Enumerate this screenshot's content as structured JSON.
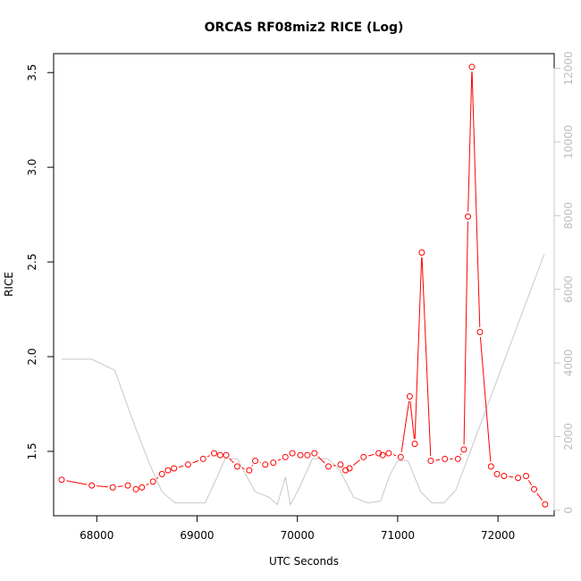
{
  "chart_data": {
    "type": "line",
    "title": "ORCAS RF08miz2 RICE (Log)",
    "xlabel": "UTC Seconds",
    "ylabel": "RICE",
    "xlim": [
      67570,
      72560
    ],
    "ylim": [
      1.16,
      3.6
    ],
    "y2lim": [
      -150,
      12400
    ],
    "grid": false,
    "legend": "none",
    "x_ticks": [
      68000,
      69000,
      70000,
      71000,
      72000
    ],
    "y_ticks": [
      1.5,
      2.0,
      2.5,
      3.0,
      3.5
    ],
    "y2_ticks": [
      0,
      2000,
      4000,
      6000,
      8000,
      10000,
      12000
    ],
    "x_tick_labels": [
      "68000",
      "69000",
      "70000",
      "71000",
      "72000"
    ],
    "y_tick_labels": [
      "1.5",
      "2.0",
      "2.5",
      "3.0",
      "3.5"
    ],
    "y2_tick_labels": [
      "0",
      "2000",
      "4000",
      "6000",
      "8000",
      "10000",
      "12000"
    ],
    "series": [
      {
        "axis": "left",
        "color": "#ff0000",
        "style": "line+circles",
        "x": [
          67650,
          67950,
          68160,
          68310,
          68390,
          68450,
          68560,
          68650,
          68710,
          68770,
          68910,
          69060,
          69170,
          69230,
          69290,
          69400,
          69520,
          69580,
          69680,
          69760,
          69880,
          69950,
          70030,
          70100,
          70170,
          70310,
          70430,
          70480,
          70520,
          70660,
          70810,
          70850,
          70910,
          71030,
          71120,
          71170,
          71240,
          71330,
          71470,
          71600,
          71660,
          71700,
          71740,
          71820,
          71930,
          71990,
          72060,
          72200,
          72280,
          72360,
          72470
        ],
        "y": [
          1.35,
          1.32,
          1.31,
          1.32,
          1.3,
          1.31,
          1.34,
          1.38,
          1.4,
          1.41,
          1.43,
          1.46,
          1.49,
          1.48,
          1.48,
          1.42,
          1.4,
          1.45,
          1.43,
          1.44,
          1.47,
          1.49,
          1.48,
          1.48,
          1.49,
          1.42,
          1.43,
          1.4,
          1.41,
          1.47,
          1.49,
          1.48,
          1.49,
          1.47,
          1.79,
          1.54,
          2.55,
          1.45,
          1.46,
          1.46,
          1.51,
          2.74,
          3.53,
          2.13,
          1.42,
          1.38,
          1.37,
          1.36,
          1.37,
          1.3,
          1.22
        ]
      },
      {
        "axis": "right",
        "color": "#c8c8c8",
        "style": "line",
        "x": [
          67650,
          67950,
          68180,
          68350,
          68520,
          68650,
          68780,
          68900,
          69080,
          69200,
          69280,
          69400,
          69580,
          69720,
          69800,
          69880,
          69930,
          70000,
          70150,
          70300,
          70420,
          70560,
          70700,
          70830,
          70920,
          71000,
          71100,
          71230,
          71340,
          71460,
          71580,
          72460
        ],
        "y": [
          4100,
          4100,
          3800,
          2500,
          1300,
          500,
          200,
          200,
          200,
          900,
          1400,
          1400,
          500,
          350,
          150,
          900,
          150,
          500,
          1400,
          1400,
          1100,
          350,
          200,
          250,
          950,
          1350,
          1350,
          500,
          200,
          200,
          550,
          6950
        ]
      }
    ]
  }
}
